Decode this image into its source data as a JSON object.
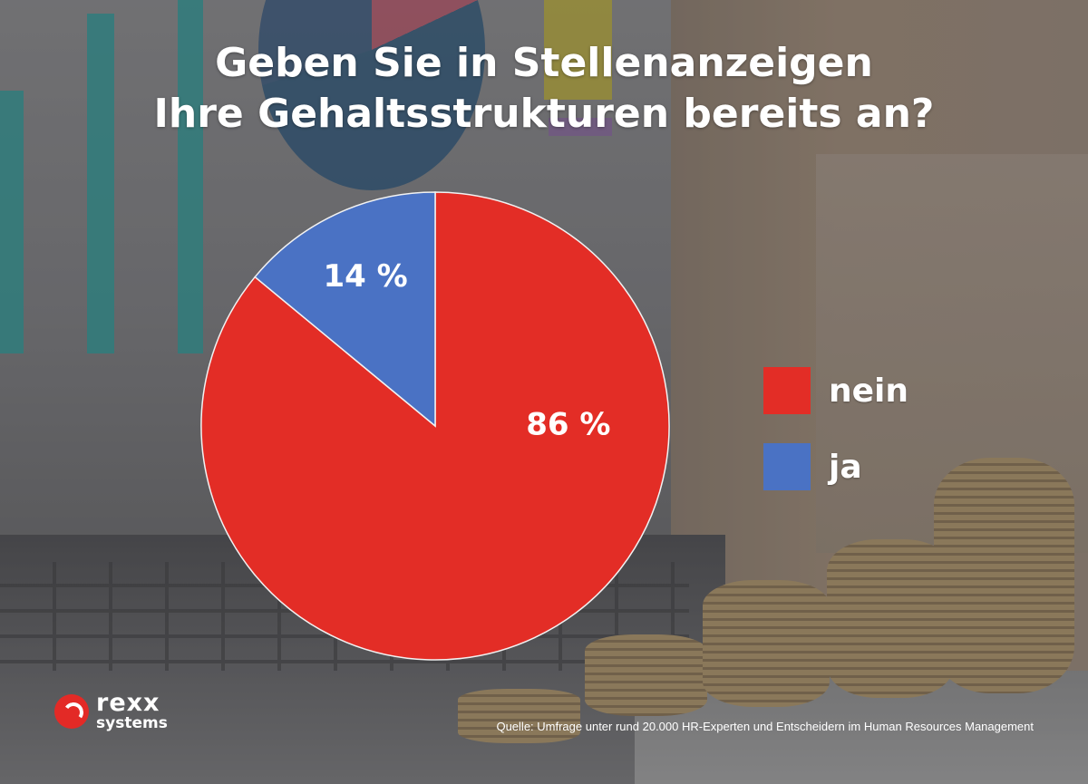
{
  "title": {
    "line1": "Geben Sie in Stellenanzeigen",
    "line2": "Ihre Gehaltsstrukturen bereits an?"
  },
  "chart_data": {
    "type": "pie",
    "title": "Geben Sie in Stellenanzeigen Ihre Gehaltsstrukturen bereits an?",
    "slices": [
      {
        "label": "nein",
        "value": 86,
        "display": "86 %",
        "color": "#e32d26"
      },
      {
        "label": "ja",
        "value": 14,
        "display": "14 %",
        "color": "#4a72c4"
      }
    ],
    "legend_position": "right"
  },
  "logo": {
    "name_top": "rexx",
    "name_bottom": "systems",
    "color": "#e32a26"
  },
  "source": "Quelle: Umfrage unter rund 20.000 HR-Experten und Entscheidern im Human Resources Management"
}
